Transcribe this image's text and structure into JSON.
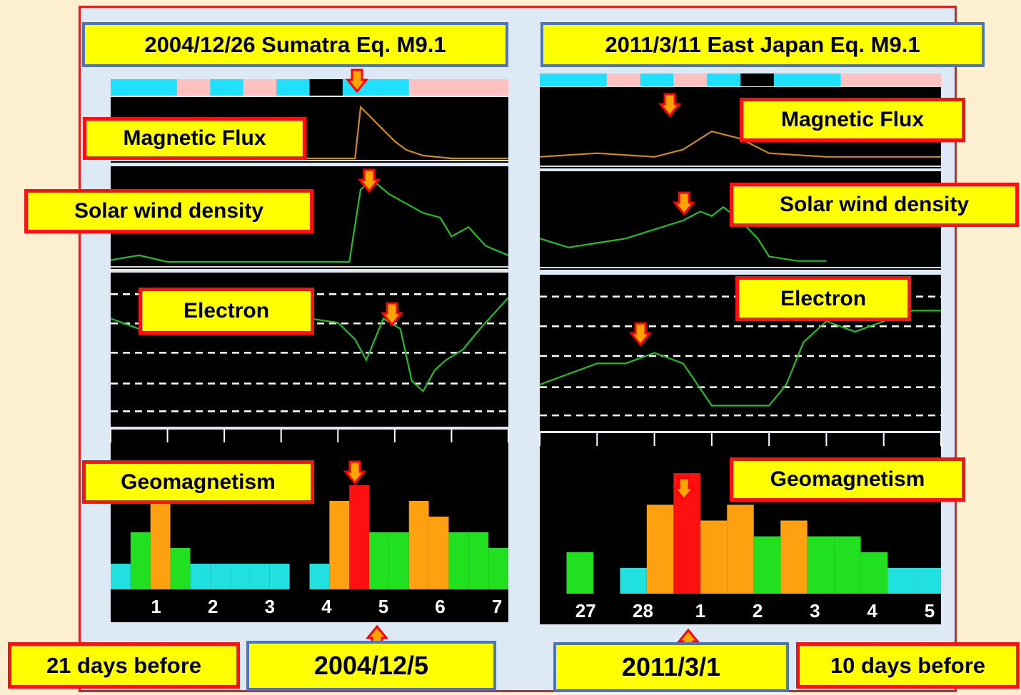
{
  "left": {
    "title": "2004/12/26 Sumatra Eq. M9.1",
    "panel_labels": [
      "Magnetic Flux",
      "Solar wind density",
      "Electron",
      "Geomagnetism"
    ],
    "days": [
      "1",
      "2",
      "3",
      "4",
      "5",
      "6",
      "7"
    ],
    "date": "2004/12/5",
    "days_before": "21 days before"
  },
  "right": {
    "title": "2011/3/11 East Japan Eq. M9.1",
    "panel_labels": [
      "Magnetic Flux",
      "Solar wind density",
      "Electron",
      "Geomagnetism"
    ],
    "days": [
      "27",
      "28",
      "1",
      "2",
      "3",
      "4",
      "5"
    ],
    "date": "2011/3/1",
    "days_before": "10 days before"
  },
  "colors": {
    "flux_line": "#d08a10",
    "density_line": "#20c020",
    "electron_line": "#20c020",
    "arrow": "#ffa500",
    "arrow_outline": "#ff0000",
    "label_bg": "#ffff00",
    "kp_low": "#20e0e0",
    "kp_quiet": "#20e020",
    "kp_active": "#ffa010",
    "kp_storm": "#ff1010"
  },
  "chart_data": [
    {
      "type": "line",
      "title": "2004/12/26 Sumatra Eq. M9.1",
      "series": [
        {
          "name": "Magnetic Flux",
          "x": [
            0,
            1,
            2,
            3,
            4,
            4.3,
            4.4,
            4.6,
            4.8,
            5.0,
            5.2,
            5.5,
            6,
            7
          ],
          "values": [
            0,
            0,
            0,
            0,
            0,
            0,
            9,
            7,
            5,
            3,
            1.5,
            0.5,
            0,
            0
          ]
        },
        {
          "name": "Solar wind density",
          "x": [
            0,
            0.5,
            1,
            2,
            3,
            4.2,
            4.4,
            4.6,
            4.9,
            5.2,
            5.5,
            5.8,
            6.0,
            6.3,
            6.6,
            7
          ],
          "values": [
            0.5,
            1,
            0.3,
            0.3,
            0.3,
            0.3,
            8,
            9,
            7.5,
            6.5,
            5.5,
            5,
            3,
            4,
            2,
            1
          ]
        },
        {
          "name": "Electron",
          "x": [
            0,
            0.5,
            1,
            1.5,
            2,
            2.5,
            3,
            3.5,
            4,
            4.3,
            4.5,
            4.8,
            5.1,
            5.3,
            5.5,
            5.7,
            5.9,
            6.2,
            6.5,
            7
          ],
          "values": [
            5,
            4.5,
            5,
            4.5,
            5,
            4.5,
            5,
            5,
            4.8,
            4,
            3,
            5,
            4.5,
            2,
            1.5,
            2.5,
            3,
            3.5,
            4.5,
            6
          ]
        },
        {
          "name": "Geomagnetism",
          "x": [
            0,
            0.3,
            0.6,
            0.9,
            1.2,
            1.5,
            2,
            2.5,
            3,
            3.5,
            4,
            4.3,
            4.6,
            5,
            5.3,
            5.6,
            6,
            6.3,
            6.6,
            7
          ],
          "values": [
            1,
            3,
            5,
            2,
            1,
            1,
            1,
            1,
            1,
            0,
            1,
            5,
            6,
            3,
            3,
            5,
            4,
            3,
            3,
            2
          ]
        }
      ],
      "categories": [
        "1",
        "2",
        "3",
        "4",
        "5",
        "6",
        "7"
      ]
    },
    {
      "type": "line",
      "title": "2011/3/11 East Japan Eq. M9.1",
      "series": [
        {
          "name": "Magnetic Flux",
          "x": [
            0,
            1,
            2,
            2.5,
            3,
            3.5,
            4,
            5,
            6,
            7
          ],
          "values": [
            1,
            1.5,
            1,
            2,
            4.5,
            3.5,
            1.5,
            1,
            1,
            1
          ]
        },
        {
          "name": "Solar wind density",
          "x": [
            0,
            0.5,
            1,
            1.5,
            2,
            2.5,
            2.8,
            3.0,
            3.2,
            3.5,
            3.8,
            4,
            4.5,
            5
          ],
          "values": [
            3,
            2,
            2.5,
            3,
            4,
            5,
            6,
            5.5,
            6.5,
            5,
            3,
            1,
            0.5,
            0.5
          ]
        },
        {
          "name": "Electron",
          "x": [
            0,
            0.5,
            1,
            1.5,
            2,
            2.5,
            3,
            3.5,
            4,
            4.3,
            4.6,
            5,
            5.5,
            6,
            6.5,
            7
          ],
          "values": [
            2,
            2.5,
            3,
            3,
            3.5,
            3,
            1,
            1,
            1,
            2,
            4,
            5,
            4.5,
            5,
            5.5,
            5.5
          ]
        },
        {
          "name": "Geomagnetism",
          "x": [
            0,
            0.5,
            1,
            1.5,
            2,
            2.5,
            3,
            3.5,
            4,
            4.5,
            5,
            5.5,
            6,
            6.5,
            7
          ],
          "values": [
            0,
            2,
            0,
            1,
            5,
            7,
            4,
            5,
            3,
            4,
            3,
            3,
            2,
            1,
            1
          ]
        }
      ],
      "categories": [
        "27",
        "28",
        "1",
        "2",
        "3",
        "4",
        "5"
      ]
    }
  ]
}
